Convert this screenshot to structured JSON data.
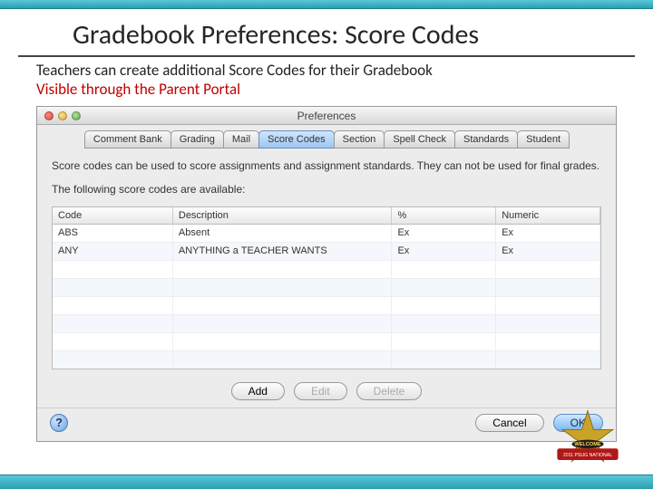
{
  "theme": {
    "accent_teal": "#2a9fb0",
    "title_underline": "#444444",
    "red_text": "#c00000"
  },
  "slide": {
    "title": "Gradebook Preferences:  Score Codes",
    "line1": "Teachers can create additional Score Codes for their Gradebook",
    "line2": "Visible through the Parent Portal"
  },
  "window": {
    "title": "Preferences",
    "tabs": [
      {
        "label": "Comment Bank",
        "selected": false
      },
      {
        "label": "Grading",
        "selected": false
      },
      {
        "label": "Mail",
        "selected": false
      },
      {
        "label": "Score Codes",
        "selected": true
      },
      {
        "label": "Section",
        "selected": false
      },
      {
        "label": "Spell Check",
        "selected": false
      },
      {
        "label": "Standards",
        "selected": false
      },
      {
        "label": "Student",
        "selected": false
      }
    ],
    "description": "Score codes can be used to score assignments and assignment standards. They can not be used for final grades.",
    "subhead": "The following score codes are available:",
    "columns": [
      "Code",
      "Description",
      "%",
      "Numeric"
    ],
    "rows": [
      {
        "code": "ABS",
        "desc": "Absent",
        "pct": "Ex",
        "num": "Ex"
      },
      {
        "code": "ANY",
        "desc": "ANYTHING a TEACHER WANTS",
        "pct": "Ex",
        "num": "Ex"
      }
    ],
    "buttons": {
      "add": "Add",
      "edit": "Edit",
      "delete": "Delete"
    },
    "footer": {
      "cancel": "Cancel",
      "ok": "OK"
    }
  },
  "badge": {
    "line1": "2011 PSUG NATIONAL",
    "color_star": "#c9a227",
    "color_banner": "#b01717"
  }
}
